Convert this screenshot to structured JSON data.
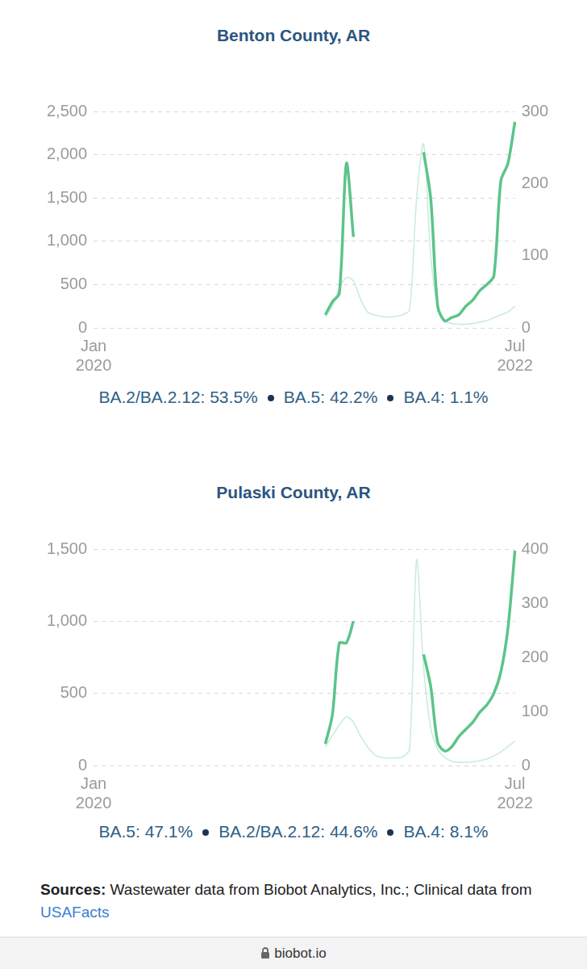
{
  "chart_data": [
    {
      "type": "line",
      "title": "Benton County, AR",
      "categories": [
        "Jan 2020",
        null,
        null,
        null,
        null,
        null,
        null,
        null,
        null,
        null,
        null,
        null,
        null,
        null,
        null,
        null,
        null,
        null,
        null,
        null,
        null,
        null,
        null,
        null,
        null,
        null,
        null,
        null,
        null,
        null,
        null,
        null,
        null,
        null,
        null,
        null,
        null,
        null,
        null,
        null,
        null,
        null,
        null,
        null,
        null,
        null,
        null,
        null,
        null,
        null,
        null,
        null,
        null,
        null,
        null,
        null,
        null,
        null,
        null,
        null,
        "Jul 2022"
      ],
      "series": [
        {
          "color": "#c9eddc",
          "axis": "y2",
          "values": [
            null,
            null,
            null,
            null,
            null,
            null,
            null,
            null,
            null,
            null,
            null,
            null,
            null,
            null,
            null,
            null,
            null,
            null,
            null,
            null,
            null,
            null,
            null,
            null,
            null,
            null,
            null,
            null,
            null,
            null,
            null,
            null,
            null,
            15,
            30,
            55,
            70,
            65,
            40,
            22,
            18,
            16,
            15,
            16,
            18,
            25,
            180,
            255,
            100,
            30,
            10,
            6,
            5,
            5,
            6,
            8,
            10,
            14,
            18,
            22,
            30
          ]
        },
        {
          "color": "#5cc48a",
          "values": [
            null,
            null,
            null,
            null,
            null,
            null,
            null,
            null,
            null,
            null,
            null,
            null,
            null,
            null,
            null,
            null,
            null,
            null,
            null,
            null,
            null,
            null,
            null,
            null,
            null,
            null,
            null,
            null,
            null,
            null,
            null,
            null,
            null,
            150,
            300,
            400,
            1900,
            1050,
            null,
            null,
            null,
            null,
            null,
            null,
            null,
            null,
            null,
            2030,
            1500,
            250,
            80,
            120,
            150,
            250,
            320,
            430,
            500,
            600,
            1700,
            1900,
            2380
          ]
        }
      ],
      "ylim": [
        0,
        2500
      ],
      "yticks": [
        0,
        500,
        {
          "value": 1000,
          "label": "1,000"
        },
        {
          "value": 1500,
          "label": "1,500"
        },
        {
          "value": 2000,
          "label": "2,000"
        },
        {
          "value": 2500,
          "label": "2,500"
        }
      ],
      "y2lim": [
        0,
        300
      ],
      "y2ticks": [
        0,
        100,
        200,
        300
      ],
      "grid": true,
      "annotations": [
        "BA.2/BA.2.12: 53.5%",
        "BA.5: 42.2%",
        "BA.4: 1.1%"
      ]
    },
    {
      "type": "line",
      "title": "Pulaski County, AR",
      "categories": [
        "Jan 2020",
        null,
        null,
        null,
        null,
        null,
        null,
        null,
        null,
        null,
        null,
        null,
        null,
        null,
        null,
        null,
        null,
        null,
        null,
        null,
        null,
        null,
        null,
        null,
        null,
        null,
        null,
        null,
        null,
        null,
        null,
        null,
        null,
        null,
        null,
        null,
        null,
        null,
        null,
        null,
        null,
        null,
        null,
        null,
        null,
        null,
        null,
        null,
        null,
        null,
        null,
        null,
        null,
        null,
        null,
        null,
        null,
        null,
        null,
        null,
        "Jul 2022"
      ],
      "series": [
        {
          "color": "#c9eddc",
          "axis": "y2",
          "values": [
            null,
            null,
            null,
            null,
            null,
            null,
            null,
            null,
            null,
            null,
            null,
            null,
            null,
            null,
            null,
            null,
            null,
            null,
            null,
            null,
            null,
            null,
            null,
            null,
            null,
            null,
            null,
            null,
            null,
            null,
            null,
            null,
            null,
            35,
            55,
            75,
            90,
            80,
            55,
            35,
            20,
            15,
            14,
            14,
            16,
            30,
            380,
            180,
            70,
            30,
            15,
            8,
            6,
            6,
            7,
            9,
            12,
            18,
            25,
            35,
            45
          ]
        },
        {
          "color": "#5cc48a",
          "values": [
            null,
            null,
            null,
            null,
            null,
            null,
            null,
            null,
            null,
            null,
            null,
            null,
            null,
            null,
            null,
            null,
            null,
            null,
            null,
            null,
            null,
            null,
            null,
            null,
            null,
            null,
            null,
            null,
            null,
            null,
            null,
            null,
            null,
            150,
            350,
            850,
            850,
            1000,
            null,
            null,
            null,
            null,
            null,
            null,
            null,
            null,
            null,
            770,
            550,
            160,
            100,
            130,
            200,
            250,
            300,
            370,
            420,
            500,
            650,
            950,
            1490
          ]
        }
      ],
      "ylim": [
        0,
        1500
      ],
      "yticks": [
        0,
        500,
        {
          "value": 1000,
          "label": "1,000"
        },
        {
          "value": 1500,
          "label": "1,500"
        }
      ],
      "y2lim": [
        0,
        400
      ],
      "y2ticks": [
        0,
        100,
        200,
        300,
        400
      ],
      "grid": true,
      "annotations": [
        "BA.5: 47.1%",
        "BA.2/BA.2.12: 44.6%",
        "BA.4: 8.1%"
      ]
    }
  ],
  "sources": {
    "label": "Sources:",
    "text": "Wastewater data from Biobot Analytics, Inc.; Clinical data from",
    "link": "USAFacts"
  },
  "footer": "biobot.io"
}
